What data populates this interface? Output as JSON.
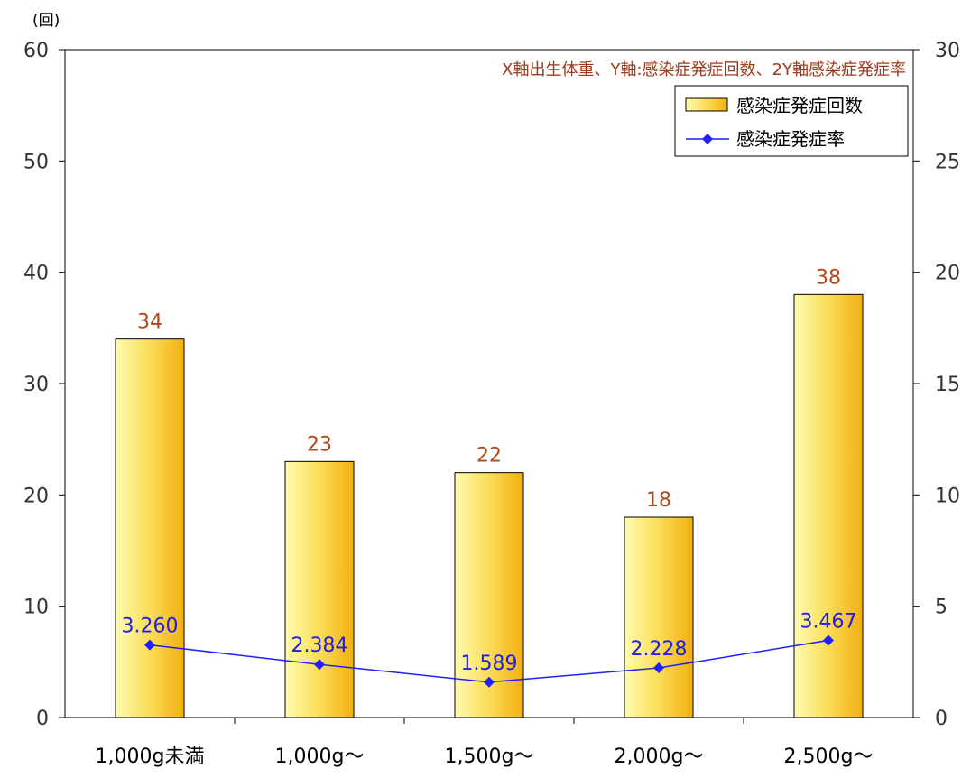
{
  "chart_data": {
    "type": "bar",
    "categories": [
      "1,000g未満",
      "1,000g〜",
      "1,500g〜",
      "2,000g〜",
      "2,500g〜"
    ],
    "series": [
      {
        "name": "感染症発症回数",
        "type": "bar",
        "axis": "left",
        "values": [
          34,
          23,
          22,
          18,
          38
        ],
        "data_labels": [
          "34",
          "23",
          "22",
          "18",
          "38"
        ],
        "color": "#f5c21b"
      },
      {
        "name": "感染症発症率",
        "type": "line",
        "axis": "right",
        "values": [
          3.26,
          2.384,
          1.589,
          2.228,
          3.467
        ],
        "data_labels": [
          "3.260",
          "2.384",
          "1.589",
          "2.228",
          "3.467"
        ],
        "color": "#1f1fff"
      }
    ],
    "y_left": {
      "unit": "(回)",
      "min": 0,
      "max": 60,
      "ticks": [
        "0",
        "10",
        "20",
        "30",
        "40",
        "50",
        "60"
      ]
    },
    "y_right": {
      "min": 0,
      "max": 30,
      "ticks": [
        "0",
        "5",
        "10",
        "15",
        "20",
        "25",
        "30"
      ]
    },
    "annotation": "X軸出生体重、Y軸:感染症発症回数、2Y軸感染症発症率",
    "legend": {
      "position": "top-right",
      "entries": [
        "感染症発症回数",
        "感染症発症率"
      ]
    },
    "grid": false
  }
}
